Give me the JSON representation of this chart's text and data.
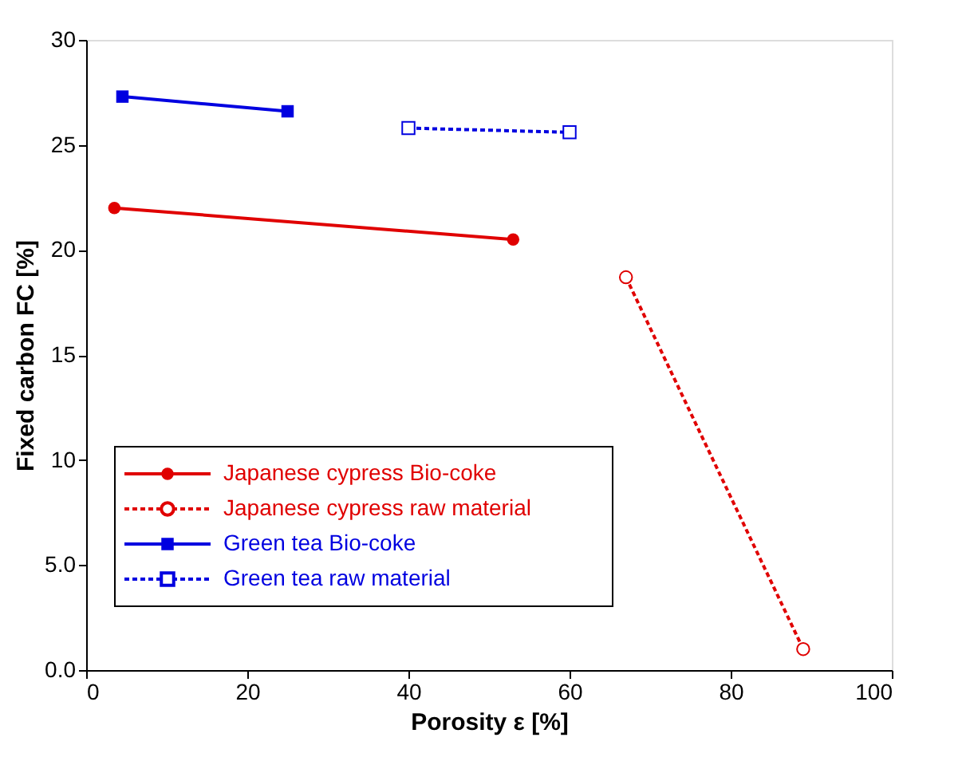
{
  "chart_data": {
    "type": "line",
    "xlabel": "Porosity  ε  [%]",
    "ylabel": "Fixed carbon FC [%]",
    "xlim": [
      0,
      100
    ],
    "xticks": [
      0,
      20,
      40,
      60,
      80,
      100
    ],
    "ylim": [
      0,
      30
    ],
    "yticks": [
      {
        "value": 0,
        "label": "0.0"
      },
      {
        "value": 5,
        "label": "5.0"
      },
      10,
      15,
      20,
      25,
      30
    ],
    "grid": false,
    "legend": "bottom left",
    "series": [
      {
        "name": "Japanese cypress Bio-coke",
        "color": "#e00000",
        "x": [
          3.5,
          53
        ],
        "values": [
          22.0,
          20.5
        ],
        "marker": "circle",
        "line_style": "solid"
      },
      {
        "name": "Japanese cypress raw material",
        "color": "#e00000",
        "x": [
          67,
          89
        ],
        "values": [
          18.7,
          1.0
        ],
        "marker": "circle",
        "line_style": "dotted"
      },
      {
        "name": "Green tea Bio-coke",
        "color": "#0000e0",
        "x": [
          4.5,
          25
        ],
        "values": [
          27.3,
          26.6
        ],
        "marker": "square",
        "line_style": "solid"
      },
      {
        "name": "Green tea raw material",
        "color": "#0000e0",
        "x": [
          40,
          60
        ],
        "values": [
          25.8,
          25.6
        ],
        "marker": "square",
        "line_style": "dotted"
      }
    ]
  }
}
